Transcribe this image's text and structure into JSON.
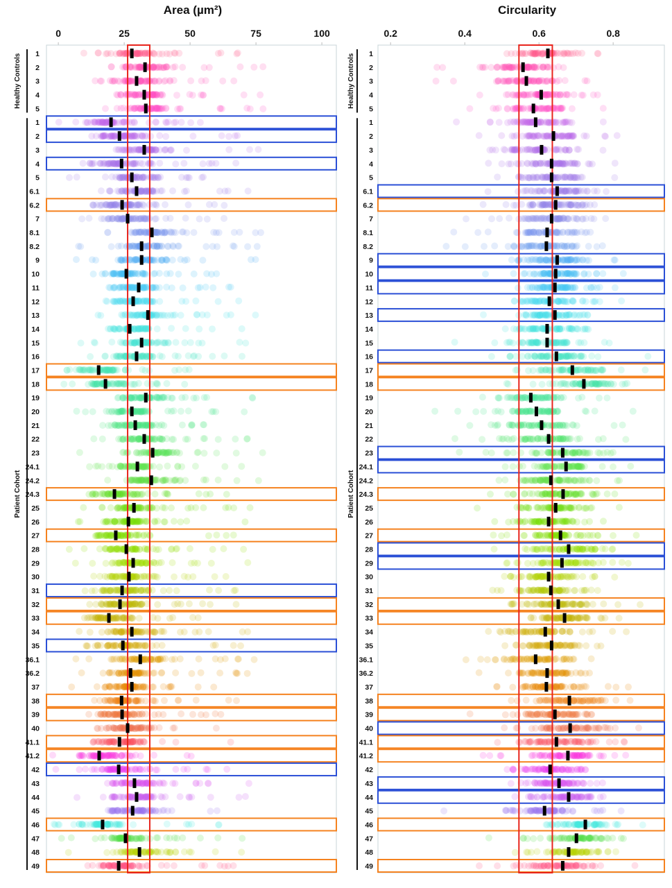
{
  "chart_data": [
    {
      "type": "scatter",
      "title": "Area (µm²)",
      "xlim": [
        -4.5,
        105.5
      ],
      "xticks": [
        "0",
        "25",
        "50",
        "75",
        "100"
      ],
      "reference_band": [
        26.3,
        34.7
      ],
      "reference_band_color": "#e8241c"
    },
    {
      "type": "scatter",
      "title": "Circularity",
      "xlim": [
        0.166,
        0.938
      ],
      "xticks": [
        "0.2",
        "0.4",
        "0.6",
        "0.8"
      ],
      "reference_band": [
        0.546,
        0.636
      ],
      "reference_band_color": "#e8241c"
    }
  ],
  "groups": [
    {
      "name": "Healthy Controls"
    },
    {
      "name": "Patient Cohort"
    }
  ],
  "highlight_colors": {
    "blue": "#2a4fd6",
    "orange": "#f5821f"
  },
  "median_marker_color": "#000000",
  "rows": [
    {
      "label": "1",
      "group": 0,
      "color": "#ff5a8c",
      "area_median": 27.9,
      "circ_median": 0.624,
      "area_box": null,
      "circ_box": null
    },
    {
      "label": "2",
      "group": 0,
      "color": "#ff4fb4",
      "area_median": 32.9,
      "circ_median": 0.557,
      "area_box": null,
      "circ_box": null
    },
    {
      "label": "3",
      "group": 0,
      "color": "#ff4fb8",
      "area_median": 29.7,
      "circ_median": 0.566,
      "area_box": null,
      "circ_box": null
    },
    {
      "label": "4",
      "group": 0,
      "color": "#ff4fc0",
      "area_median": 32.6,
      "circ_median": 0.606,
      "area_box": null,
      "circ_box": null
    },
    {
      "label": "5",
      "group": 0,
      "color": "#ff4fc8",
      "area_median": 33.2,
      "circ_median": 0.585,
      "area_box": null,
      "circ_box": null
    },
    {
      "label": "1",
      "group": 1,
      "color": "#c266e8",
      "area_median": 20.0,
      "circ_median": 0.591,
      "area_box": "blue",
      "circ_box": null
    },
    {
      "label": "2",
      "group": 1,
      "color": "#b866ea",
      "area_median": 23.2,
      "circ_median": 0.639,
      "area_box": "blue",
      "circ_box": null
    },
    {
      "label": "3",
      "group": 1,
      "color": "#b070ea",
      "area_median": 32.6,
      "circ_median": 0.607,
      "area_box": null,
      "circ_box": null
    },
    {
      "label": "4",
      "group": 1,
      "color": "#a870ea",
      "area_median": 24.0,
      "circ_median": 0.634,
      "area_box": "blue",
      "circ_box": null
    },
    {
      "label": "5",
      "group": 1,
      "color": "#a078ea",
      "area_median": 27.9,
      "circ_median": 0.634,
      "area_box": null,
      "circ_box": null
    },
    {
      "label": "6.1",
      "group": 1,
      "color": "#9a78ea",
      "area_median": 29.7,
      "circ_median": 0.649,
      "area_box": null,
      "circ_box": "blue"
    },
    {
      "label": "6.2",
      "group": 1,
      "color": "#9080ea",
      "area_median": 24.2,
      "circ_median": 0.645,
      "area_box": "orange",
      "circ_box": "orange"
    },
    {
      "label": "7",
      "group": 1,
      "color": "#8888ea",
      "area_median": 26.3,
      "circ_median": 0.634,
      "area_box": null,
      "circ_box": null
    },
    {
      "label": "8.1",
      "group": 1,
      "color": "#7894ec",
      "area_median": 35.5,
      "circ_median": 0.622,
      "area_box": null,
      "circ_box": null
    },
    {
      "label": "8.2",
      "group": 1,
      "color": "#689cee",
      "area_median": 31.6,
      "circ_median": 0.62,
      "area_box": null,
      "circ_box": null
    },
    {
      "label": "9",
      "group": 1,
      "color": "#50aaf2",
      "area_median": 31.6,
      "circ_median": 0.649,
      "area_box": null,
      "circ_box": "blue"
    },
    {
      "label": "10",
      "group": 1,
      "color": "#40baf2",
      "area_median": 25.8,
      "circ_median": 0.645,
      "area_box": null,
      "circ_box": "blue"
    },
    {
      "label": "11",
      "group": 1,
      "color": "#40c8f2",
      "area_median": 30.5,
      "circ_median": 0.643,
      "area_box": null,
      "circ_box": "blue"
    },
    {
      "label": "12",
      "group": 1,
      "color": "#40d6f0",
      "area_median": 28.4,
      "circ_median": 0.628,
      "area_box": null,
      "circ_box": null
    },
    {
      "label": "13",
      "group": 1,
      "color": "#40e0ea",
      "area_median": 34.0,
      "circ_median": 0.643,
      "area_box": null,
      "circ_box": "blue"
    },
    {
      "label": "14",
      "group": 1,
      "color": "#40e6e0",
      "area_median": 27.1,
      "circ_median": 0.622,
      "area_box": null,
      "circ_box": null
    },
    {
      "label": "15",
      "group": 1,
      "color": "#40e6d2",
      "area_median": 31.6,
      "circ_median": 0.622,
      "area_box": null,
      "circ_box": null
    },
    {
      "label": "16",
      "group": 1,
      "color": "#40e4c4",
      "area_median": 29.7,
      "circ_median": 0.647,
      "area_box": null,
      "circ_box": "blue"
    },
    {
      "label": "17",
      "group": 1,
      "color": "#40e2b4",
      "area_median": 15.3,
      "circ_median": 0.69,
      "area_box": "orange",
      "circ_box": "orange"
    },
    {
      "label": "18",
      "group": 1,
      "color": "#40e2a6",
      "area_median": 17.9,
      "circ_median": 0.721,
      "area_box": "orange",
      "circ_box": "orange"
    },
    {
      "label": "19",
      "group": 1,
      "color": "#40e298",
      "area_median": 33.2,
      "circ_median": 0.578,
      "area_box": null,
      "circ_box": null
    },
    {
      "label": "20",
      "group": 1,
      "color": "#40e288",
      "area_median": 27.9,
      "circ_median": 0.593,
      "area_box": null,
      "circ_box": null
    },
    {
      "label": "21",
      "group": 1,
      "color": "#44e278",
      "area_median": 29.2,
      "circ_median": 0.607,
      "area_box": null,
      "circ_box": null
    },
    {
      "label": "22",
      "group": 1,
      "color": "#4ce268",
      "area_median": 32.6,
      "circ_median": 0.626,
      "area_box": null,
      "circ_box": null
    },
    {
      "label": "23",
      "group": 1,
      "color": "#56e258",
      "area_median": 35.8,
      "circ_median": 0.664,
      "area_box": null,
      "circ_box": "blue"
    },
    {
      "label": "24.1",
      "group": 1,
      "color": "#5ee24c",
      "area_median": 30.0,
      "circ_median": 0.673,
      "area_box": null,
      "circ_box": "blue"
    },
    {
      "label": "24.2",
      "group": 1,
      "color": "#60e040",
      "area_median": 35.3,
      "circ_median": 0.632,
      "area_box": null,
      "circ_box": null
    },
    {
      "label": "24.3",
      "group": 1,
      "color": "#60e020",
      "area_median": 21.3,
      "circ_median": 0.665,
      "area_box": "orange",
      "circ_box": "orange"
    },
    {
      "label": "25",
      "group": 1,
      "color": "#6ee010",
      "area_median": 28.7,
      "circ_median": 0.645,
      "area_box": null,
      "circ_box": null
    },
    {
      "label": "26",
      "group": 1,
      "color": "#74e000",
      "area_median": 26.6,
      "circ_median": 0.626,
      "area_box": null,
      "circ_box": null
    },
    {
      "label": "27",
      "group": 1,
      "color": "#80e000",
      "area_median": 21.8,
      "circ_median": 0.658,
      "area_box": "orange",
      "circ_box": "orange"
    },
    {
      "label": "28",
      "group": 1,
      "color": "#8ee000",
      "area_median": 25.8,
      "circ_median": 0.68,
      "area_box": null,
      "circ_box": "blue"
    },
    {
      "label": "29",
      "group": 1,
      "color": "#a0dc00",
      "area_median": 28.4,
      "circ_median": 0.662,
      "area_box": null,
      "circ_box": "blue"
    },
    {
      "label": "30",
      "group": 1,
      "color": "#b0d400",
      "area_median": 26.8,
      "circ_median": 0.626,
      "area_box": null,
      "circ_box": null
    },
    {
      "label": "31",
      "group": 1,
      "color": "#b4c800",
      "area_median": 24.2,
      "circ_median": 0.632,
      "area_box": "blue",
      "circ_box": null
    },
    {
      "label": "32",
      "group": 1,
      "color": "#bcb800",
      "area_median": 23.4,
      "circ_median": 0.652,
      "area_box": "orange",
      "circ_box": "orange"
    },
    {
      "label": "33",
      "group": 1,
      "color": "#c4b000",
      "area_median": 19.2,
      "circ_median": 0.669,
      "area_box": "orange",
      "circ_box": "orange"
    },
    {
      "label": "34",
      "group": 1,
      "color": "#ccaa00",
      "area_median": 27.9,
      "circ_median": 0.617,
      "area_box": null,
      "circ_box": null
    },
    {
      "label": "35",
      "group": 1,
      "color": "#d4a400",
      "area_median": 24.5,
      "circ_median": 0.634,
      "area_box": "blue",
      "circ_box": null
    },
    {
      "label": "36.1",
      "group": 1,
      "color": "#dc9c00",
      "area_median": 31.1,
      "circ_median": 0.591,
      "area_box": null,
      "circ_box": null
    },
    {
      "label": "36.2",
      "group": 1,
      "color": "#e29000",
      "area_median": 27.4,
      "circ_median": 0.622,
      "area_box": null,
      "circ_box": null
    },
    {
      "label": "37",
      "group": 1,
      "color": "#e88400",
      "area_median": 27.9,
      "circ_median": 0.62,
      "area_box": null,
      "circ_box": null
    },
    {
      "label": "38",
      "group": 1,
      "color": "#ec8010",
      "area_median": 24.0,
      "circ_median": 0.682,
      "area_box": "orange",
      "circ_box": "orange"
    },
    {
      "label": "39",
      "group": 1,
      "color": "#f07030",
      "area_median": 24.2,
      "circ_median": 0.643,
      "area_box": "orange",
      "circ_box": "orange"
    },
    {
      "label": "40",
      "group": 1,
      "color": "#f06848",
      "area_median": 26.3,
      "circ_median": 0.684,
      "area_box": null,
      "circ_box": "blue"
    },
    {
      "label": "41.1",
      "group": 1,
      "color": "#f85060",
      "area_median": 23.2,
      "circ_median": 0.647,
      "area_box": "orange",
      "circ_box": "orange"
    },
    {
      "label": "41.2",
      "group": 1,
      "color": "#f830e0",
      "area_median": 15.5,
      "circ_median": 0.678,
      "area_box": "orange",
      "circ_box": "orange"
    },
    {
      "label": "42",
      "group": 1,
      "color": "#e838f0",
      "area_median": 22.9,
      "circ_median": 0.63,
      "area_box": "blue",
      "circ_box": null
    },
    {
      "label": "43",
      "group": 1,
      "color": "#d850f0",
      "area_median": 28.9,
      "circ_median": 0.654,
      "area_box": null,
      "circ_box": "blue"
    },
    {
      "label": "44",
      "group": 1,
      "color": "#c858ee",
      "area_median": 29.7,
      "circ_median": 0.68,
      "area_box": null,
      "circ_box": "blue"
    },
    {
      "label": "45",
      "group": 1,
      "color": "#9870ee",
      "area_median": 28.2,
      "circ_median": 0.615,
      "area_box": null,
      "circ_box": null
    },
    {
      "label": "46",
      "group": 1,
      "color": "#40e8e0",
      "area_median": 16.8,
      "circ_median": 0.725,
      "area_box": "orange",
      "circ_box": "orange"
    },
    {
      "label": "47",
      "group": 1,
      "color": "#50e040",
      "area_median": 25.5,
      "circ_median": 0.701,
      "area_box": null,
      "circ_box": null
    },
    {
      "label": "48",
      "group": 1,
      "color": "#b8d000",
      "area_median": 30.8,
      "circ_median": 0.68,
      "area_box": null,
      "circ_box": null
    },
    {
      "label": "49",
      "group": 1,
      "color": "#ff5080",
      "area_median": 22.9,
      "circ_median": 0.664,
      "area_box": "orange",
      "circ_box": "orange"
    }
  ]
}
